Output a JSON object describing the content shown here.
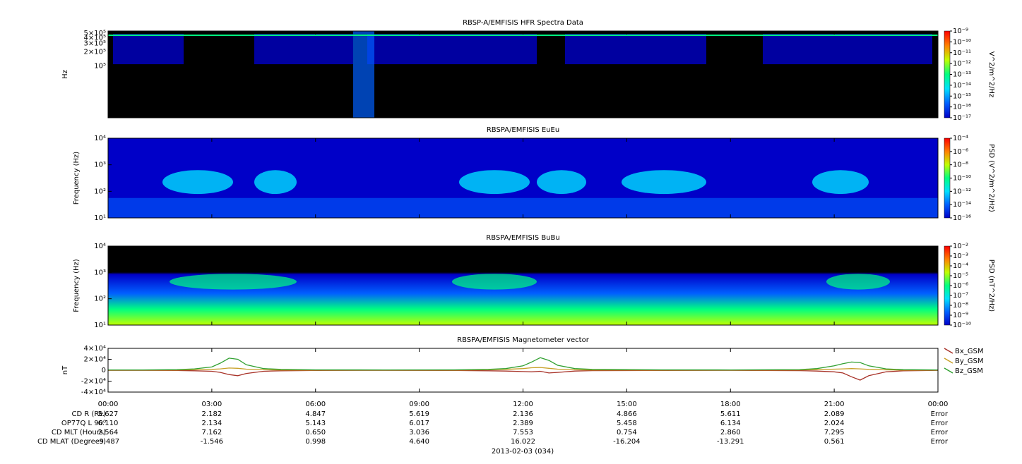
{
  "chart_data": [
    {
      "type": "spectrogram",
      "title": "RBSP-A/EMFISIS  HFR Spectra Data",
      "ylabel": "Hz",
      "log": true,
      "ylim": [
        8000,
        550000
      ],
      "yticks": [
        {
          "value": 100000,
          "label": "10⁵"
        },
        {
          "value": 200000,
          "label": "2×10⁵"
        },
        {
          "value": 300000,
          "label": "3×10⁵"
        },
        {
          "value": 400000,
          "label": "4×10⁵"
        },
        {
          "value": 500000,
          "label": "5×10⁵"
        }
      ],
      "xlim": [
        0,
        24
      ],
      "xticks": [
        0,
        3,
        6,
        9,
        12,
        15,
        18,
        21,
        24
      ],
      "clim": [
        1e-17,
        1e-09
      ],
      "cticks": [
        {
          "value": 1e-17,
          "label": "10⁻¹⁷"
        },
        {
          "value": 1e-16,
          "label": "10⁻¹⁶"
        },
        {
          "value": 1e-15,
          "label": "10⁻¹⁵"
        },
        {
          "value": 1e-14,
          "label": "10⁻¹⁴"
        },
        {
          "value": 1e-13,
          "label": "10⁻¹³"
        },
        {
          "value": 1e-12,
          "label": "10⁻¹²"
        },
        {
          "value": 1e-11,
          "label": "10⁻¹¹"
        },
        {
          "value": 1e-10,
          "label": "10⁻¹⁰"
        },
        {
          "value": 1e-09,
          "label": "10⁻⁹"
        }
      ],
      "clabel": "V^2/m^2/Hz",
      "colormap": [
        "#0000c8",
        "#0060ff",
        "#00e0ff",
        "#00ff80",
        "#c0ff00",
        "#ff8000",
        "#ff0000"
      ]
    },
    {
      "type": "spectrogram",
      "title": "RBSPA/EMFISIS  EuEu",
      "ylabel": "Frequency (Hz)",
      "log": true,
      "ylim": [
        10,
        10000
      ],
      "yticks": [
        {
          "value": 10,
          "label": "10¹"
        },
        {
          "value": 100,
          "label": "10²"
        },
        {
          "value": 1000,
          "label": "10³"
        },
        {
          "value": 10000,
          "label": "10⁴"
        }
      ],
      "xlim": [
        0,
        24
      ],
      "xticks": [
        0,
        3,
        6,
        9,
        12,
        15,
        18,
        21,
        24
      ],
      "clim": [
        1e-16,
        0.0001
      ],
      "cticks": [
        {
          "value": 1e-16,
          "label": "10⁻¹⁶"
        },
        {
          "value": 1e-14,
          "label": "10⁻¹⁴"
        },
        {
          "value": 1e-12,
          "label": "10⁻¹²"
        },
        {
          "value": 1e-10,
          "label": "10⁻¹⁰"
        },
        {
          "value": 1e-08,
          "label": "10⁻⁸"
        },
        {
          "value": 1e-06,
          "label": "10⁻⁶"
        },
        {
          "value": 0.0001,
          "label": "10⁻⁴"
        }
      ],
      "clabel": "PSD (V^2/m^2/Hz)",
      "colormap": [
        "#0000c8",
        "#0060ff",
        "#00e0ff",
        "#00ff80",
        "#c0ff00",
        "#ff8000",
        "#ff0000"
      ]
    },
    {
      "type": "spectrogram",
      "title": "RBSPA/EMFISIS  BuBu",
      "ylabel": "Frequency (Hz)",
      "log": true,
      "ylim": [
        10,
        10000
      ],
      "yticks": [
        {
          "value": 10,
          "label": "10¹"
        },
        {
          "value": 100,
          "label": "10²"
        },
        {
          "value": 1000,
          "label": "10³"
        },
        {
          "value": 10000,
          "label": "10⁴"
        }
      ],
      "xlim": [
        0,
        24
      ],
      "xticks": [
        0,
        3,
        6,
        9,
        12,
        15,
        18,
        21,
        24
      ],
      "clim": [
        1e-10,
        0.01
      ],
      "cticks": [
        {
          "value": 1e-10,
          "label": "10⁻¹⁰"
        },
        {
          "value": 1e-09,
          "label": "10⁻⁹"
        },
        {
          "value": 1e-08,
          "label": "10⁻⁸"
        },
        {
          "value": 1e-07,
          "label": "10⁻⁷"
        },
        {
          "value": 1e-06,
          "label": "10⁻⁶"
        },
        {
          "value": 1e-05,
          "label": "10⁻⁵"
        },
        {
          "value": 0.0001,
          "label": "10⁻⁴"
        },
        {
          "value": 0.001,
          "label": "10⁻³"
        },
        {
          "value": 0.01,
          "label": "10⁻²"
        }
      ],
      "clabel": "PSD (nT^2/Hz)",
      "colormap": [
        "#0000c8",
        "#0060ff",
        "#00e0ff",
        "#00ff80",
        "#c0ff00",
        "#ff8000",
        "#ff0000"
      ]
    },
    {
      "type": "line",
      "title": "RBSPA/EMFISIS  Magnetometer vector",
      "ylabel": "nT",
      "log": false,
      "ylim": [
        -40000,
        40000
      ],
      "yticks": [
        {
          "value": -40000,
          "label": "-4×10⁴"
        },
        {
          "value": -20000,
          "label": "-2×10⁴"
        },
        0,
        {
          "value": 20000,
          "label": "2×10⁴"
        },
        {
          "value": 40000,
          "label": "4×10⁴"
        }
      ],
      "xlim": [
        0,
        24
      ],
      "xticks": [
        {
          "value": 0,
          "label": "00:00"
        },
        {
          "value": 3,
          "label": "03:00"
        },
        {
          "value": 6,
          "label": "06:00"
        },
        {
          "value": 9,
          "label": "09:00"
        },
        {
          "value": 12,
          "label": "12:00"
        },
        {
          "value": 15,
          "label": "15:00"
        },
        {
          "value": 18,
          "label": "18:00"
        },
        {
          "value": 21,
          "label": "21:00"
        },
        {
          "value": 24,
          "label": "00:00"
        }
      ],
      "x": [
        0,
        1,
        2,
        2.5,
        3,
        3.25,
        3.5,
        3.75,
        4,
        4.5,
        5,
        6,
        8,
        10,
        11,
        11.5,
        12,
        12.25,
        12.5,
        12.75,
        13,
        13.5,
        14,
        16,
        18,
        20,
        20.5,
        21,
        21.25,
        21.5,
        21.75,
        22,
        22.5,
        23,
        24
      ],
      "series": [
        {
          "name": "Bx_GSM",
          "color": "#a83228",
          "values": [
            -300,
            -300,
            -500,
            -1000,
            -2000,
            -4000,
            -8000,
            -10000,
            -6000,
            -2000,
            -1000,
            -500,
            -300,
            -500,
            -1000,
            -1500,
            -2500,
            -3000,
            -2000,
            -5000,
            -4000,
            -1500,
            -800,
            -400,
            -300,
            -800,
            -1500,
            -3000,
            -5000,
            -12000,
            -18000,
            -10000,
            -3000,
            -1000,
            -300
          ]
        },
        {
          "name": "By_GSM",
          "color": "#c8a028",
          "values": [
            200,
            200,
            400,
            800,
            1500,
            2500,
            4000,
            3500,
            2000,
            800,
            400,
            200,
            200,
            300,
            800,
            1500,
            3000,
            4500,
            5000,
            3500,
            2000,
            800,
            400,
            200,
            200,
            500,
            1000,
            2000,
            2500,
            3000,
            2500,
            1500,
            700,
            300,
            200
          ]
        },
        {
          "name": "Bz_GSM",
          "color": "#30a030",
          "values": [
            500,
            500,
            1000,
            2500,
            6000,
            13000,
            22000,
            20000,
            10000,
            3000,
            1500,
            700,
            500,
            700,
            1500,
            3000,
            8000,
            15000,
            23000,
            18000,
            9000,
            3000,
            1500,
            600,
            500,
            1200,
            3000,
            8000,
            12000,
            15000,
            14000,
            8000,
            2500,
            1000,
            500
          ]
        }
      ]
    }
  ],
  "ephemeris": {
    "rows": [
      {
        "label": "CD R (Re)",
        "values": [
          "5.627",
          "2.182",
          "4.847",
          "5.619",
          "2.136",
          "4.866",
          "5.611",
          "2.089",
          "Error"
        ]
      },
      {
        "label": "OP77Q L 90⁰",
        "values": [
          "6.110",
          "2.134",
          "5.143",
          "6.017",
          "2.389",
          "5.458",
          "6.134",
          "2.024",
          "Error"
        ]
      },
      {
        "label": "CD MLT (Hours)",
        "values": [
          "2.564",
          "7.162",
          "0.650",
          "3.036",
          "7.553",
          "0.754",
          "2.860",
          "7.295",
          "Error"
        ]
      },
      {
        "label": "CD MLAT (Degrees)",
        "values": [
          "-9.487",
          "-1.546",
          "0.998",
          "4.640",
          "16.022",
          "-16.204",
          "-13.291",
          "0.561",
          "Error"
        ]
      }
    ]
  },
  "date": "2013-02-03 (034)"
}
